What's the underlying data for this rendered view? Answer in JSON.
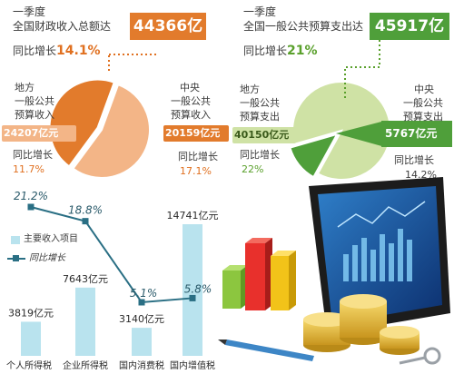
{
  "colors": {
    "orange": "#e27b2c",
    "orange_light": "#f3b587",
    "green": "#4f9f3a",
    "green_light": "#cfe2a5",
    "bar": "#b9e3ee",
    "line": "#2a6f84"
  },
  "revenue": {
    "line1": "一季度",
    "line2": "全国财政收入总额达",
    "total": "44366亿元",
    "growth_label": "同比增长",
    "growth": "14.1%",
    "local": {
      "label1": "地方",
      "label2": "一般公共",
      "label3": "预算收入",
      "amount": "24207亿元",
      "growth_label": "同比增长",
      "growth": "11.7%"
    },
    "central": {
      "label1": "中央",
      "label2": "一般公共",
      "label3": "预算收入",
      "amount": "20159亿元",
      "growth_label": "同比增长",
      "growth": "17.1%"
    }
  },
  "expenditure": {
    "line1": "一季度",
    "line2": "全国一般公共预算支出达",
    "total": "45917亿元",
    "growth_label": "同比增长",
    "growth": "21%",
    "local": {
      "label1": "地方",
      "label2": "一般公共",
      "label3": "预算支出",
      "amount": "40150亿元",
      "growth_label": "同比增长",
      "growth": "22%"
    },
    "central": {
      "label1": "中央",
      "label2": "一般公共",
      "label3": "预算支出",
      "amount": "5767亿元",
      "growth_label": "同比增长",
      "growth": "14.2%"
    }
  },
  "legend": {
    "bar": "主要收入项目",
    "line": "同比增长"
  },
  "chart_data": [
    {
      "type": "pie",
      "slices": [
        {
          "name": "地方一般公共预算收入",
          "value": 24207,
          "color": "#f3b587"
        },
        {
          "name": "中央一般公共预算收入",
          "value": 20159,
          "color": "#e27b2c"
        }
      ]
    },
    {
      "type": "pie",
      "slices": [
        {
          "name": "地方一般公共预算支出",
          "value": 40150,
          "color": "#cfe2a5"
        },
        {
          "name": "中央一般公共预算支出",
          "value": 5767,
          "color": "#4f9f3a"
        }
      ]
    },
    {
      "type": "bar",
      "categories": [
        "个人所得税",
        "企业所得税",
        "国内消费税",
        "国内增值税"
      ],
      "series": [
        {
          "name": "主要收入项目",
          "values": [
            3819,
            7643,
            3140,
            14741
          ],
          "labels": [
            "3819亿元",
            "7643亿元",
            "3140亿元",
            "14741亿元"
          ]
        },
        {
          "name": "同比增长",
          "values": [
            21.2,
            18.8,
            5.1,
            5.8
          ],
          "labels": [
            "21.2%",
            "18.8%",
            "5.1%",
            "5.8%"
          ]
        }
      ]
    }
  ]
}
